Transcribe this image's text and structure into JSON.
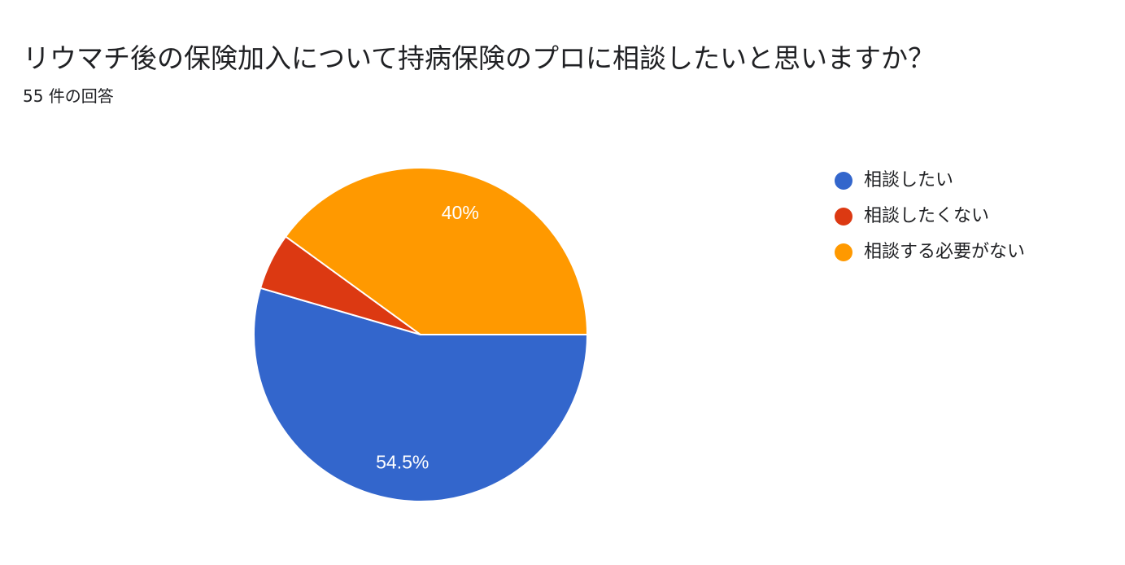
{
  "header": {
    "title": "リウマチ後の保険加入について持病保険のプロに相談したいと思いますか？",
    "response_count": "55 件の回答"
  },
  "chart_data": {
    "type": "pie",
    "title": "リウマチ後の保険加入について持病保険のプロに相談したいと思いますか？",
    "categories": [
      "相談したい",
      "相談したくない",
      "相談する必要がない"
    ],
    "values": [
      54.5,
      5.5,
      40
    ],
    "data_labels": [
      "54.5%",
      "",
      "40%"
    ],
    "colors": [
      "#3366cc",
      "#dc3912",
      "#ff9900"
    ],
    "legend_position": "right"
  }
}
